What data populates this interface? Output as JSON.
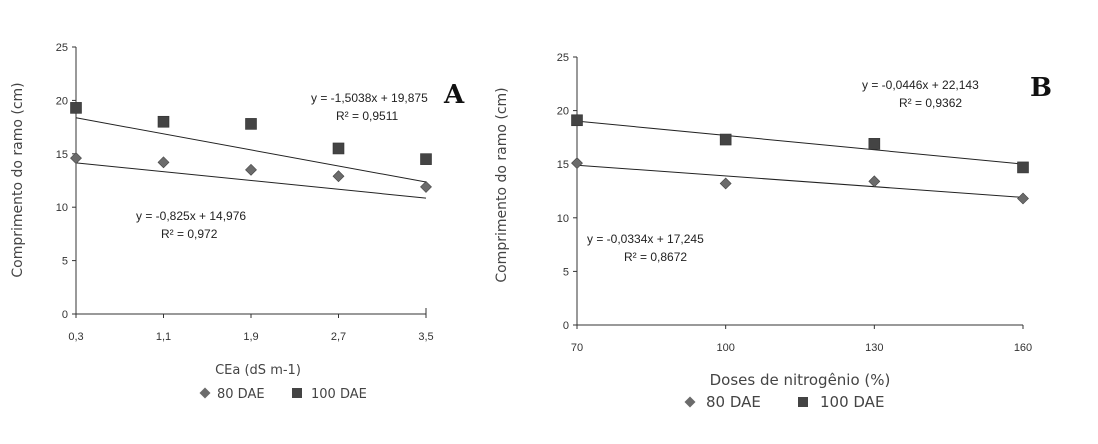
{
  "chart_data": [
    {
      "type": "scatter",
      "panel_letter": "A",
      "xlabel": "CEa (dS m-1)",
      "ylabel": "Comprimento do ramo (cm)",
      "x_ticks": [
        "0,3",
        "1,1",
        "1,9",
        "2,7",
        "3,5"
      ],
      "x": [
        0.3,
        1.1,
        1.9,
        2.7,
        3.5
      ],
      "ylim": [
        0,
        25
      ],
      "y_ticks": [
        "0",
        "5",
        "10",
        "15",
        "20",
        "25"
      ],
      "series": [
        {
          "name": "80 DAE",
          "marker": "diamond",
          "color": "#6b6b6b",
          "values": [
            14.6,
            14.2,
            13.5,
            12.9,
            11.9
          ],
          "trend": {
            "slope": -0.825,
            "intercept": 14.976
          },
          "equation": "y = -0,825x + 14,976",
          "r2": "R² = 0,972"
        },
        {
          "name": "100 DAE",
          "marker": "square",
          "color": "#444444",
          "values": [
            19.3,
            18.0,
            17.8,
            15.5,
            14.5
          ],
          "trend": {
            "slope": -1.5038,
            "intercept": 19.875
          },
          "equation": "y = -1,5038x + 19,875",
          "r2": "R² = 0,9511"
        }
      ],
      "legend_placement": "bottom"
    },
    {
      "type": "scatter",
      "panel_letter": "B",
      "xlabel": "Doses de nitrogênio (%)",
      "ylabel": "Comprimento do ramo (cm)",
      "x_ticks": [
        "70",
        "100",
        "130",
        "160"
      ],
      "x": [
        70,
        100,
        130,
        160
      ],
      "ylim": [
        0,
        25
      ],
      "y_ticks": [
        "0",
        "5",
        "10",
        "15",
        "20",
        "25"
      ],
      "series": [
        {
          "name": "80 DAE",
          "marker": "diamond",
          "color": "#6b6b6b",
          "values": [
            15.1,
            13.2,
            13.4,
            11.8
          ],
          "trend": {
            "slope": -0.0334,
            "intercept": 17.245
          },
          "equation": "y = -0,0334x + 17,245",
          "r2": "R² = 0,8672"
        },
        {
          "name": "100 DAE",
          "marker": "square",
          "color": "#444444",
          "values": [
            19.1,
            17.3,
            16.9,
            14.7
          ],
          "trend": {
            "slope": -0.0446,
            "intercept": 22.143
          },
          "equation": "y = -0,0446x + 22,143",
          "r2": "R² = 0,9362"
        }
      ],
      "legend_placement": "bottom"
    }
  ]
}
